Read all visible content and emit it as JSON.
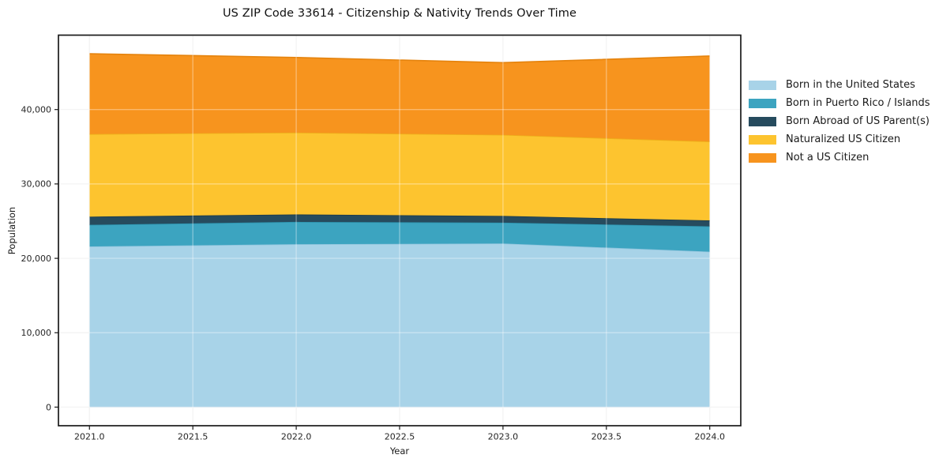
{
  "chart_data": {
    "type": "area",
    "stacked": true,
    "title": "US ZIP Code 33614 - Citizenship & Nativity Trends Over Time",
    "xlabel": "Year",
    "ylabel": "Population",
    "x": [
      2021,
      2022,
      2023,
      2024
    ],
    "series": [
      {
        "name": "Born in the United States",
        "color": "#a8d3e8",
        "edge_color": "#8cc3dc",
        "values": [
          21600,
          21900,
          22000,
          20900
        ]
      },
      {
        "name": "Born in Puerto Rico / Islands",
        "color": "#3ca4c0",
        "edge_color": "#2d93ae",
        "values": [
          2900,
          3000,
          2800,
          3400
        ]
      },
      {
        "name": "Born Abroad of US Parent(s)",
        "color": "#264b5e",
        "edge_color": "#1c3a49",
        "values": [
          1100,
          1000,
          900,
          800
        ]
      },
      {
        "name": "Naturalized US Citizen",
        "color": "#fdc42f",
        "edge_color": "#edb01a",
        "values": [
          11100,
          11000,
          10900,
          10600
        ]
      },
      {
        "name": "Not a US Citizen",
        "color": "#f7941e",
        "edge_color": "#e5830d",
        "values": [
          10800,
          10100,
          9700,
          11500
        ]
      }
    ],
    "xticks": [
      2021.0,
      2021.5,
      2022.0,
      2022.5,
      2023.0,
      2023.5,
      2024.0
    ],
    "yticks": [
      0,
      10000,
      20000,
      30000,
      40000
    ],
    "xlim": [
      2020.85,
      2024.15
    ],
    "ylim": [
      -2500,
      50000
    ],
    "grid": true,
    "legend_position": "right of plot, upper area",
    "spine_color": "#1a1a1a",
    "grid_color_on_white": "#ededed",
    "grid_color_on_area": "rgba(255,255,255,0.35)",
    "tick_label_color": "#262626"
  }
}
